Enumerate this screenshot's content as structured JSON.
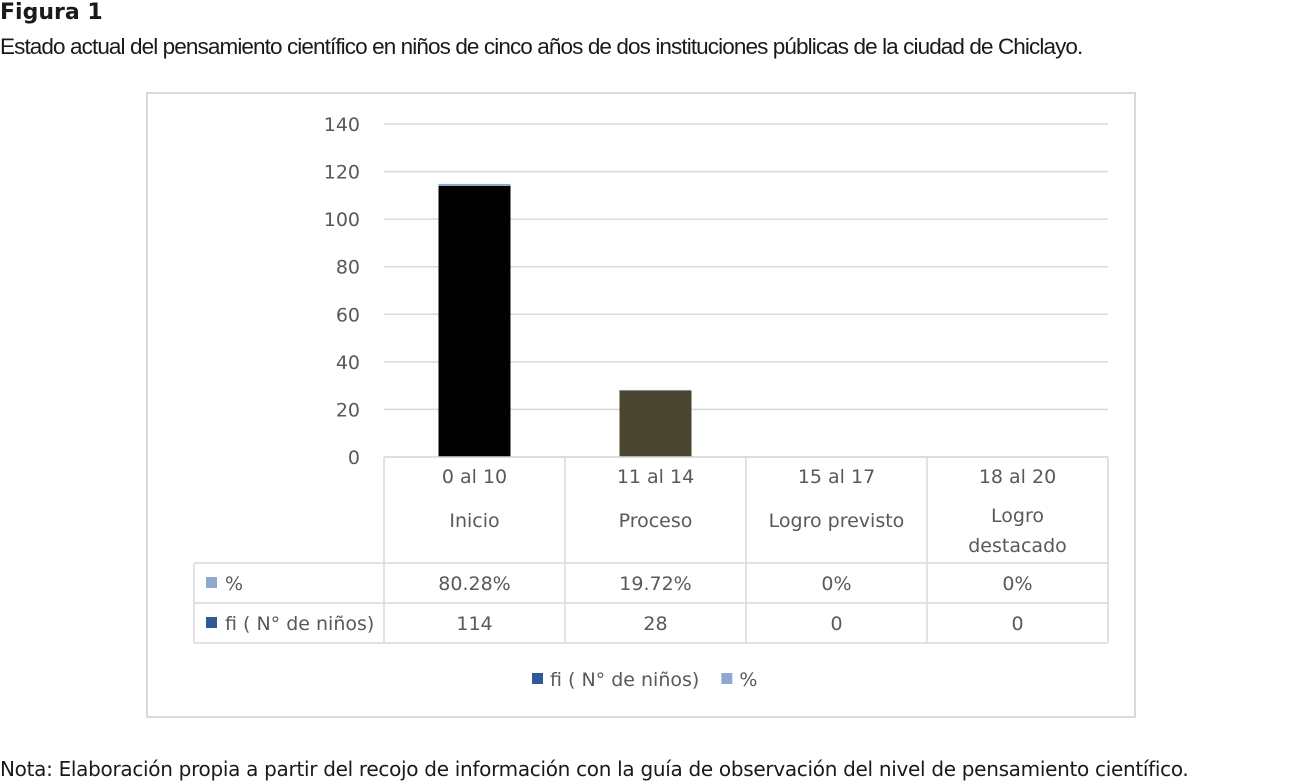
{
  "figure_label": "Figura 1",
  "figure_title": "Estado actual del pensamiento científico en niños de cinco años de dos instituciones públicas de la ciudad de Chiclayo.",
  "note": "Nota: Elaboración propia a partir del recojo de información con la guía de observación del nivel de pensamiento científico.",
  "chart_data": {
    "type": "bar",
    "stacked": true,
    "categories": [
      {
        "range": "0 al 10",
        "level": [
          "Inicio"
        ]
      },
      {
        "range": "11 al 14",
        "level": [
          "Proceso"
        ]
      },
      {
        "range": "15 al 17",
        "level": [
          "Logro previsto"
        ]
      },
      {
        "range": "18 al 20",
        "level": [
          "Logro",
          "destacado"
        ]
      }
    ],
    "series": [
      {
        "name": "fi ( N° de niños)",
        "values": [
          114,
          28,
          0,
          0
        ],
        "table_values": [
          "114",
          "28",
          "0",
          "0"
        ],
        "bar_colors": [
          "#000000",
          "#4a4530",
          "#000000",
          "#000000"
        ],
        "legend_color": "#2e5b96"
      },
      {
        "name": "%",
        "values": [
          0.8028,
          0.1972,
          0,
          0
        ],
        "table_values": [
          "80.28%",
          "19.72%",
          "0%",
          "0%"
        ],
        "bar_colors": [
          "#8fa8cf",
          "#8fa8cf",
          "#8fa8cf",
          "#8fa8cf"
        ],
        "legend_color": "#8fa8cf"
      }
    ],
    "table_row_order": [
      1,
      0
    ],
    "legend_order": [
      0,
      1
    ],
    "ylim": [
      0,
      140
    ],
    "yticks": [
      0,
      20,
      40,
      60,
      80,
      100,
      120,
      140
    ],
    "grid": true,
    "legend_position": "bottom"
  }
}
